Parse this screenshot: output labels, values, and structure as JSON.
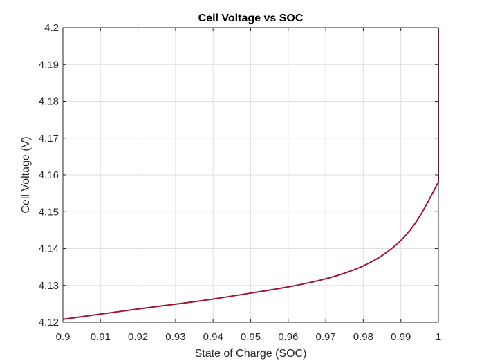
{
  "chart_data": {
    "type": "line",
    "title": "Cell Voltage vs SOC",
    "xlabel": "State of Charge (SOC)",
    "ylabel": "Cell Voltage (V)",
    "xlim": [
      0.9,
      1.0
    ],
    "ylim": [
      4.12,
      4.2
    ],
    "xticks": [
      0.9,
      0.91,
      0.92,
      0.93,
      0.94,
      0.95,
      0.96,
      0.97,
      0.98,
      0.99,
      1.0
    ],
    "xtick_labels": [
      "0.9",
      "0.91",
      "0.92",
      "0.93",
      "0.94",
      "0.95",
      "0.96",
      "0.97",
      "0.98",
      "0.99",
      "1"
    ],
    "yticks": [
      4.12,
      4.13,
      4.14,
      4.15,
      4.16,
      4.17,
      4.18,
      4.19,
      4.2
    ],
    "ytick_labels": [
      "4.12",
      "4.13",
      "4.14",
      "4.15",
      "4.16",
      "4.17",
      "4.18",
      "4.19",
      "4.2"
    ],
    "grid": true,
    "legend": "none",
    "series": [
      {
        "color": "#a2142f",
        "x": [
          0.9,
          0.91,
          0.92,
          0.93,
          0.94,
          0.95,
          0.955,
          0.96,
          0.965,
          0.97,
          0.975,
          0.98,
          0.985,
          0.99,
          0.993,
          0.995,
          0.997,
          0.998,
          0.999,
          1.0,
          1.0
        ],
        "y": [
          4.1208,
          4.1222,
          4.1236,
          4.1249,
          4.1263,
          4.1279,
          4.1287,
          4.1296,
          4.1306,
          4.1318,
          4.1333,
          4.1353,
          4.1381,
          4.1422,
          4.1457,
          4.1487,
          4.1523,
          4.1542,
          4.1561,
          4.1578,
          4.2
        ]
      }
    ]
  }
}
